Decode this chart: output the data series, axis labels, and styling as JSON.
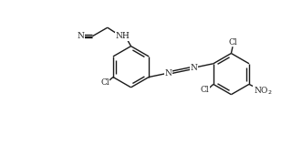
{
  "bg_color": "#ffffff",
  "line_color": "#1a1a1a",
  "line_width": 1.0,
  "font_size": 6.5,
  "figsize": [
    3.31,
    1.59
  ],
  "dpi": 100,
  "xlim": [
    0,
    10.5
  ],
  "ylim": [
    0,
    5.0
  ]
}
